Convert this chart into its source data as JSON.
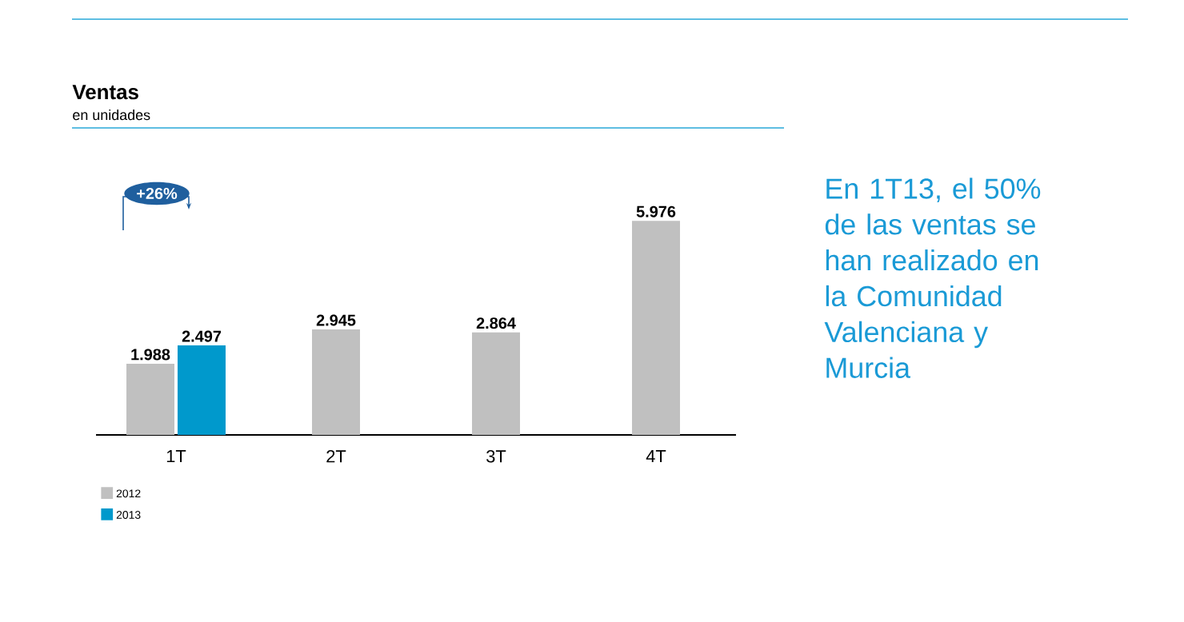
{
  "chart_data": {
    "type": "bar",
    "title": "Ventas",
    "subtitle": "en unidades",
    "categories": [
      "1T",
      "2T",
      "3T",
      "4T"
    ],
    "series": [
      {
        "name": "2012",
        "color": "#c0c0c0",
        "values": [
          1988,
          2945,
          2864,
          5976
        ],
        "value_labels": [
          "1.988",
          "2.945",
          "2.864",
          "5.976"
        ]
      },
      {
        "name": "2013",
        "color": "#0099cc",
        "values": [
          2497,
          null,
          null,
          null
        ],
        "value_labels": [
          "2.497",
          null,
          null,
          null
        ]
      }
    ],
    "annotations": [
      "+26%",
      "En 1T13, el 50% de las ventas se han realizado en la Comunidad Valenciana y Murcia"
    ],
    "legend": "bottom left"
  }
}
